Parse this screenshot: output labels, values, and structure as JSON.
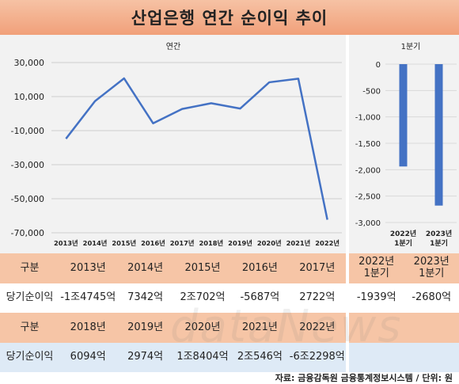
{
  "title": "산업은행 연간 순이익 추이",
  "chart_data": [
    {
      "type": "line",
      "title": "연간",
      "categories": [
        "2013년",
        "2014년",
        "2015년",
        "2016년",
        "2017년",
        "2018년",
        "2019년",
        "2020년",
        "2021년",
        "2022년"
      ],
      "values": [
        -14745,
        7342,
        20702,
        -5687,
        2722,
        6094,
        2974,
        18404,
        20546,
        -62298
      ],
      "yticks": [
        "30,000",
        "10,000",
        "-10,000",
        "-30,000",
        "-50,000",
        "-70,000"
      ],
      "ylim": [
        -70000,
        30000
      ],
      "line_color": "#4472c4"
    },
    {
      "type": "bar",
      "title": "1분기",
      "categories": [
        "2022년 1분기",
        "2023년 1분기"
      ],
      "values": [
        -1939,
        -2680
      ],
      "yticks": [
        "0",
        "-500",
        "-1,000",
        "-1,500",
        "-2,000",
        "-2,500",
        "-3,000"
      ],
      "ylim": [
        -3000,
        0
      ],
      "bar_color": "#4472c4"
    }
  ],
  "table": {
    "row1": {
      "head": "구분",
      "cells": [
        "2013년",
        "2014년",
        "2015년",
        "2016년",
        "2017년"
      ],
      "q": [
        "2022년 1분기",
        "2023년 1분기"
      ]
    },
    "row2": {
      "head": "당기순이익",
      "cells": [
        "-1조4745억",
        "7342억",
        "2조702억",
        "-5687억",
        "2722억"
      ],
      "q": [
        "-1939억",
        "-2680억"
      ]
    },
    "row3": {
      "head": "구분",
      "cells": [
        "2018년",
        "2019년",
        "2020년",
        "2021년",
        "2022년"
      ]
    },
    "row4": {
      "head": "당기순이익",
      "cells": [
        "6094억",
        "2974억",
        "1조8404억",
        "2조546억",
        "-6조2298억"
      ]
    }
  },
  "watermark": "dataNews",
  "source": "자료: 금융감독원 금융통계정보시스템 / 단위: 원",
  "colors": {
    "title_bg": "#f1a07a",
    "header_row": "#f6c5a6",
    "blue_row": "#deeaf6",
    "panel": "#f2f2f2"
  }
}
